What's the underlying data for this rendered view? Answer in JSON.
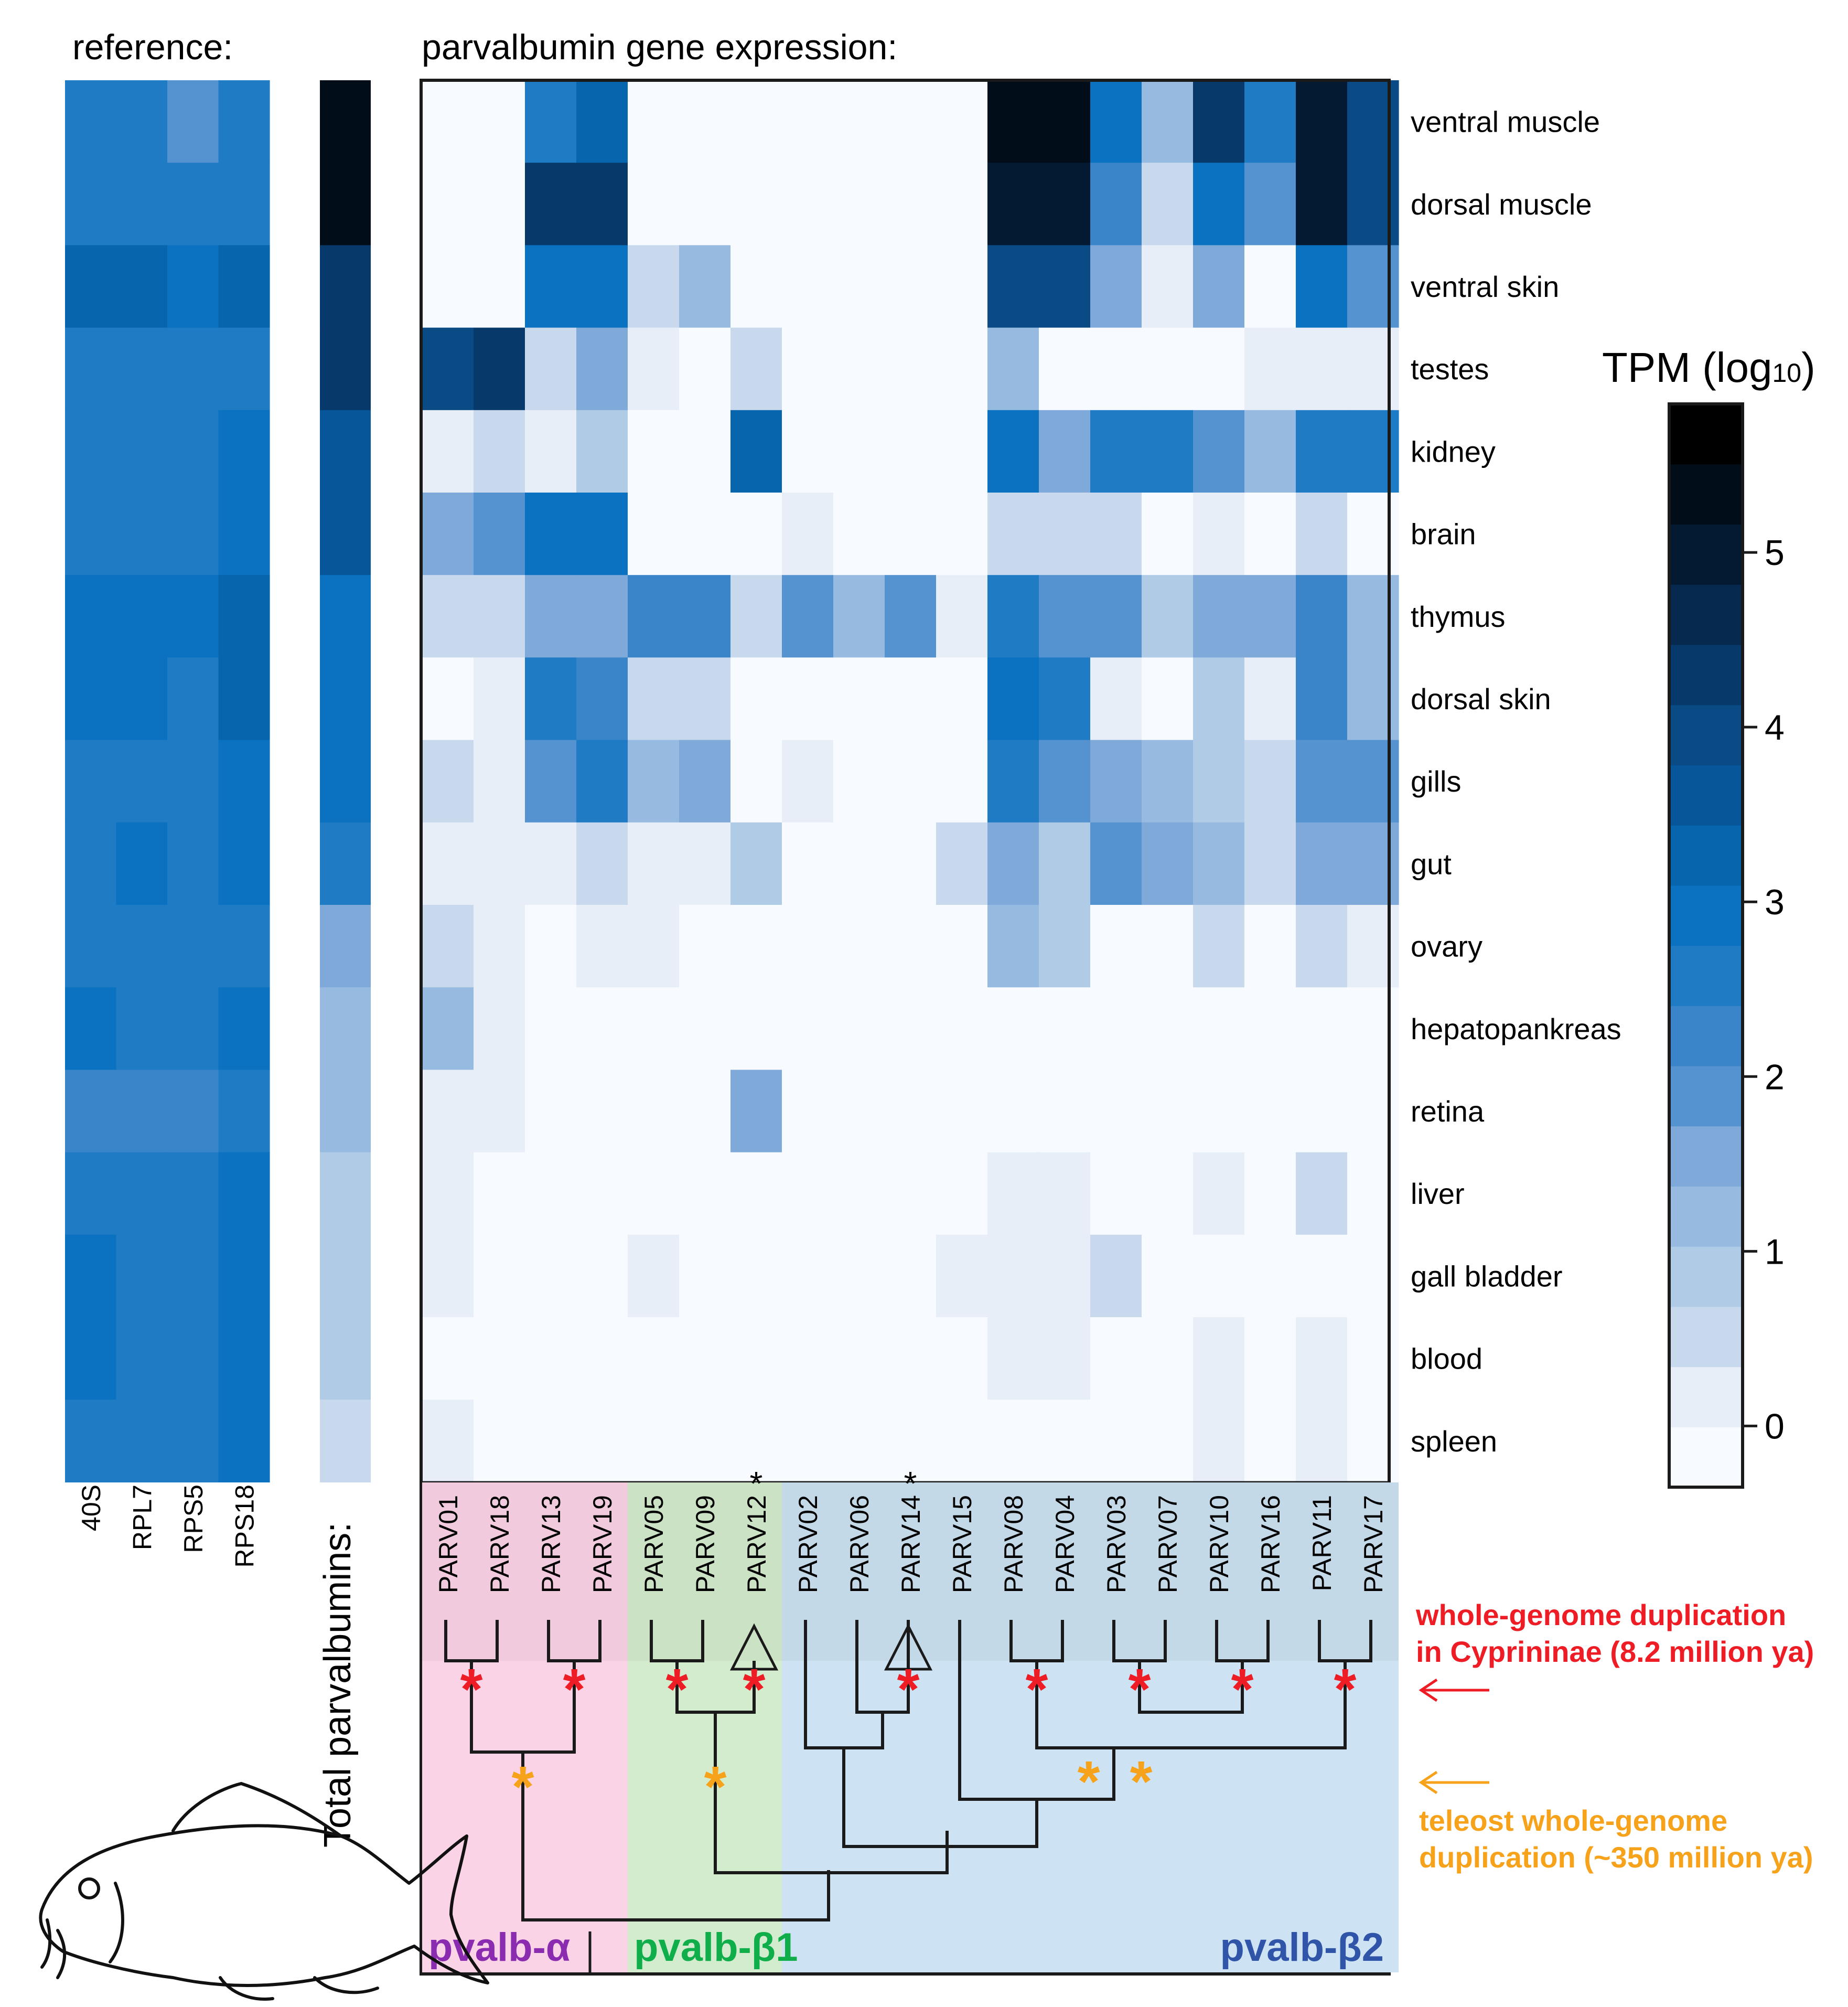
{
  "chart_data": {
    "type": "heatmap",
    "reference_title": "reference:",
    "main_title": "parvalbumin gene expression:",
    "total_label": "Total parvalbumins:",
    "colorbar_label": "TPM (log",
    "colorbar_label_sub": "10",
    "colorbar_label_close": ")",
    "colorbar_range": [
      -0.35,
      5.85
    ],
    "colorbar_ticks": [
      "0",
      "1",
      "2",
      "3",
      "4",
      "5"
    ],
    "colorbar_tick_values": [
      0,
      1,
      2,
      3,
      4,
      5
    ],
    "tissues": [
      "ventral muscle",
      "dorsal muscle",
      "ventral skin",
      "testes",
      "kidney",
      "brain",
      "thymus",
      "dorsal skin",
      "gills",
      "gut",
      "ovary",
      "hepatopankreas",
      "retina",
      "liver",
      "gall bladder",
      "blood",
      "spleen"
    ],
    "reference_genes": [
      "40S",
      "RPL7",
      "RPS5",
      "RPS18"
    ],
    "reference_values": [
      [
        2.6,
        2.6,
        2.0,
        2.8
      ],
      [
        2.6,
        2.6,
        2.6,
        2.8
      ],
      [
        3.4,
        3.4,
        3.0,
        3.6
      ],
      [
        2.9,
        2.9,
        2.9,
        2.9
      ],
      [
        2.9,
        2.9,
        2.9,
        3.1
      ],
      [
        2.9,
        2.9,
        2.6,
        3.1
      ],
      [
        3.2,
        3.2,
        3.2,
        3.5
      ],
      [
        3.2,
        3.2,
        2.9,
        3.5
      ],
      [
        2.9,
        2.9,
        2.9,
        3.1
      ],
      [
        2.9,
        3.2,
        2.9,
        3.1
      ],
      [
        2.9,
        2.9,
        2.6,
        2.9
      ],
      [
        3.2,
        2.9,
        2.9,
        3.1
      ],
      [
        2.3,
        2.3,
        2.3,
        2.9
      ],
      [
        2.9,
        2.9,
        2.6,
        3.1
      ],
      [
        3.1,
        2.9,
        2.9,
        3.1
      ],
      [
        3.2,
        2.6,
        2.9,
        3.1
      ],
      [
        2.9,
        2.9,
        2.6,
        3.1
      ]
    ],
    "total_values": [
      5.8,
      5.8,
      4.6,
      4.4,
      4.0,
      3.8,
      3.1,
      3.1,
      3.1,
      2.6,
      1.8,
      1.3,
      1.3,
      1.0,
      1.0,
      1.0,
      0.7
    ],
    "genes": [
      "PARV01",
      "PARV18",
      "PARV13",
      "PARV19",
      "PARV05",
      "PARV09",
      "PARV12",
      "PARV02",
      "PARV06",
      "PARV14",
      "PARV15",
      "PARV08",
      "PARV04",
      "PARV03",
      "PARV07",
      "PARV10",
      "PARV16",
      "PARV11",
      "PARV17"
    ],
    "gene_asterisks": [
      "",
      "",
      "",
      "",
      "",
      "",
      "*",
      "",
      "",
      "*",
      "",
      "",
      "",
      "",
      "",
      "",
      "",
      "",
      ""
    ],
    "expression": [
      [
        -1,
        -1,
        2.9,
        3.6,
        -1,
        -1,
        -1,
        -1,
        -1,
        -1,
        -1,
        5.6,
        5.6,
        3.0,
        1.2,
        4.5,
        2.9,
        5.4,
        4.3
      ],
      [
        -1,
        -1,
        4.4,
        4.4,
        -1,
        -1,
        -1,
        -1,
        -1,
        -1,
        -1,
        5.3,
        5.3,
        2.5,
        0.7,
        3.2,
        2.0,
        5.2,
        4.2
      ],
      [
        -1,
        -1,
        3.0,
        3.0,
        0.7,
        1.2,
        -1,
        -1,
        -1,
        -1,
        -1,
        4.2,
        4.2,
        1.5,
        0.1,
        1.6,
        -1,
        3.2,
        2.0
      ],
      [
        4.2,
        4.6,
        0.4,
        1.6,
        0.3,
        -1,
        0.4,
        -1,
        -1,
        -1,
        -1,
        1.4,
        -1,
        -1,
        -1,
        -1,
        0.1,
        0.1,
        0.1
      ],
      [
        0.3,
        0.7,
        0.3,
        1.0,
        -1,
        -1,
        3.5,
        -1,
        -1,
        -1,
        -1,
        3.0,
        1.6,
        2.8,
        2.8,
        1.9,
        1.3,
        2.6,
        2.9
      ],
      [
        1.6,
        2.1,
        3.2,
        3.2,
        -1,
        -1,
        -1,
        0.1,
        -1,
        -1,
        -1,
        0.5,
        0.5,
        0.5,
        -1,
        0.1,
        -1,
        0.4,
        -1
      ],
      [
        0.7,
        0.4,
        1.8,
        1.8,
        2.3,
        2.3,
        0.4,
        1.9,
        1.2,
        2.0,
        0.1,
        2.7,
        2.2,
        2.0,
        1.1,
        1.6,
        1.6,
        2.4,
        1.3
      ],
      [
        -1,
        0.1,
        2.7,
        2.3,
        0.5,
        0.5,
        -1,
        -1,
        -1,
        -1,
        -1,
        3.0,
        2.9,
        0.1,
        -1,
        0.8,
        0.1,
        2.3,
        1.2
      ],
      [
        0.7,
        0.1,
        1.9,
        2.8,
        1.3,
        1.6,
        -1,
        0.1,
        -1,
        -1,
        -1,
        2.7,
        1.9,
        1.6,
        1.3,
        0.9,
        0.4,
        1.9,
        1.9
      ],
      [
        0.3,
        0.1,
        0.3,
        0.7,
        0.1,
        0.1,
        1.1,
        -1,
        -1,
        -1,
        0.4,
        1.8,
        1.0,
        1.9,
        1.7,
        1.3,
        0.4,
        1.8,
        1.8
      ],
      [
        0.6,
        0.3,
        -1,
        0.1,
        0.1,
        -1,
        -1,
        -1,
        -1,
        -1,
        -1,
        1.2,
        1.0,
        -1,
        -1,
        0.6,
        -1,
        0.6,
        0.1
      ],
      [
        1.4,
        0.3,
        -1,
        -1,
        -1,
        -1,
        -1,
        -1,
        -1,
        -1,
        -1,
        -1,
        -1,
        -1,
        -1,
        -1,
        -1,
        -1,
        -1
      ],
      [
        0.3,
        0.3,
        -1,
        -1,
        -1,
        -1,
        1.5,
        -1,
        -1,
        -1,
        -1,
        -1,
        -1,
        -1,
        -1,
        -1,
        -1,
        -1,
        -1
      ],
      [
        0.1,
        -1,
        -1,
        -1,
        -1,
        -1,
        -1,
        -1,
        -1,
        -1,
        -1,
        0.3,
        0.3,
        -1,
        -1,
        0.1,
        -1,
        0.4,
        -1
      ],
      [
        0.1,
        -1,
        -1,
        -1,
        0.1,
        -1,
        -1,
        -1,
        -1,
        -1,
        0.1,
        0.3,
        0.1,
        0.4,
        -1,
        -1,
        -1,
        -1,
        -1
      ],
      [
        -1,
        -1,
        -1,
        -1,
        -1,
        -1,
        -1,
        -1,
        -1,
        -1,
        -1,
        0.3,
        0.3,
        -1,
        -1,
        0.1,
        -1,
        0.1,
        -1
      ],
      [
        0.3,
        -1,
        -1,
        -1,
        -1,
        -1,
        -1,
        -1,
        -1,
        -1,
        -1,
        -1,
        -1,
        -1,
        -1,
        0.1,
        -1,
        0.3,
        -1
      ]
    ],
    "clades": [
      {
        "name": "pvalb-α",
        "genes": [
          "PARV01",
          "PARV18",
          "PARV13",
          "PARV19"
        ],
        "color": "#fbd3e6",
        "label_color": "#8a2bb0"
      },
      {
        "name": "pvalb-β1",
        "genes": [
          "PARV05",
          "PARV09",
          "PARV12"
        ],
        "color": "#d4ecce",
        "label_color": "#0fae4b"
      },
      {
        "name": "pvalb-β2",
        "genes": [
          "PARV02",
          "PARV06",
          "PARV14",
          "PARV15",
          "PARV08",
          "PARV04",
          "PARV03",
          "PARV07",
          "PARV10",
          "PARV16",
          "PARV11",
          "PARV17"
        ],
        "color": "#cde2f2",
        "label_color": "#2f54a8"
      }
    ],
    "annotations": {
      "wgd_cyprininae": [
        "whole-genome duplication",
        "in Cyprininae (8.2 million ya)"
      ],
      "wgd_teleost": [
        "teleost whole-genome",
        "duplication (~350 million ya)"
      ],
      "wgd_cyprininae_color": "#ee1c24",
      "wgd_teleost_color": "#f7a21b"
    }
  }
}
